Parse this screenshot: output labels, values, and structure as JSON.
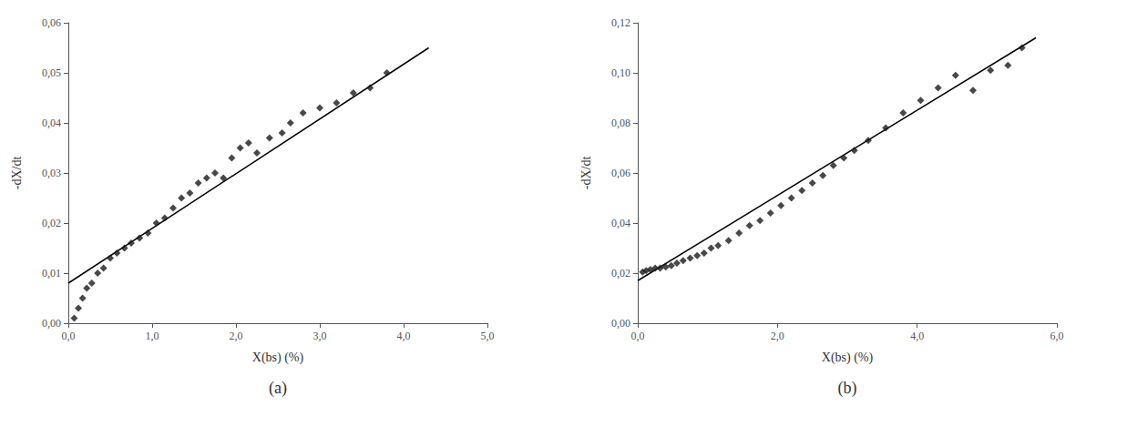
{
  "chart_data": [
    {
      "type": "scatter",
      "xlabel": "X(bs) (%)",
      "ylabel": "-dX/dt",
      "annotations": [
        "(a)"
      ],
      "grid": false,
      "series": [
        {
          "type": "scatter",
          "color": "#1a1a1a",
          "marker": "diamond",
          "x": [
            0.07,
            0.12,
            0.17,
            0.22,
            0.28,
            0.35,
            0.42,
            0.5,
            0.58,
            0.67,
            0.75,
            0.85,
            0.95,
            1.05,
            1.15,
            1.25,
            1.35,
            1.45,
            1.55,
            1.65,
            1.75,
            1.85,
            1.95,
            2.05,
            2.15,
            2.25,
            2.4,
            2.55,
            2.65,
            2.8,
            3.0,
            3.2,
            3.4,
            3.6,
            3.8
          ],
          "values": [
            0.001,
            0.003,
            0.005,
            0.007,
            0.008,
            0.01,
            0.011,
            0.013,
            0.014,
            0.015,
            0.016,
            0.017,
            0.018,
            0.02,
            0.021,
            0.023,
            0.025,
            0.026,
            0.028,
            0.029,
            0.03,
            0.029,
            0.033,
            0.035,
            0.036,
            0.034,
            0.037,
            0.038,
            0.04,
            0.042,
            0.043,
            0.044,
            0.046,
            0.047,
            0.05
          ]
        },
        {
          "type": "line",
          "color": "#000000",
          "x": [
            0.0,
            4.3
          ],
          "values": [
            0.008,
            0.055
          ]
        }
      ],
      "xlim": [
        0.0,
        5.0
      ],
      "xticks": [
        {
          "value": 0.0,
          "label": "0,0"
        },
        {
          "value": 1.0,
          "label": "1,0"
        },
        {
          "value": 2.0,
          "label": "2,0"
        },
        {
          "value": 3.0,
          "label": "3,0"
        },
        {
          "value": 4.0,
          "label": "4,0"
        },
        {
          "value": 5.0,
          "label": "5,0"
        }
      ],
      "ylim": [
        0.0,
        0.06
      ],
      "yticks": [
        {
          "value": 0.0,
          "label": "0,00"
        },
        {
          "value": 0.01,
          "label": "0,01"
        },
        {
          "value": 0.02,
          "label": "0,02"
        },
        {
          "value": 0.03,
          "label": "0,03"
        },
        {
          "value": 0.04,
          "label": "0,04"
        },
        {
          "value": 0.05,
          "label": "0,05"
        },
        {
          "value": 0.06,
          "label": "0,06"
        }
      ]
    },
    {
      "type": "scatter",
      "xlabel": "X(bs) (%)",
      "ylabel": "-dX/dt",
      "annotations": [
        "(b)"
      ],
      "grid": false,
      "series": [
        {
          "type": "scatter",
          "color": "#1a1a1a",
          "marker": "diamond",
          "x": [
            0.07,
            0.12,
            0.18,
            0.25,
            0.32,
            0.4,
            0.48,
            0.56,
            0.65,
            0.75,
            0.85,
            0.95,
            1.05,
            1.15,
            1.3,
            1.45,
            1.6,
            1.75,
            1.9,
            2.05,
            2.2,
            2.35,
            2.5,
            2.65,
            2.8,
            2.95,
            3.1,
            3.3,
            3.55,
            3.8,
            4.05,
            4.3,
            4.55,
            4.8,
            5.05,
            5.3,
            5.5
          ],
          "values": [
            0.0205,
            0.021,
            0.0215,
            0.022,
            0.022,
            0.0225,
            0.023,
            0.024,
            0.025,
            0.026,
            0.027,
            0.028,
            0.03,
            0.031,
            0.033,
            0.036,
            0.039,
            0.041,
            0.044,
            0.047,
            0.05,
            0.053,
            0.056,
            0.059,
            0.063,
            0.066,
            0.069,
            0.073,
            0.078,
            0.084,
            0.089,
            0.094,
            0.099,
            0.093,
            0.101,
            0.103,
            0.11
          ]
        },
        {
          "type": "line",
          "color": "#000000",
          "x": [
            0.0,
            5.7
          ],
          "values": [
            0.017,
            0.114
          ]
        }
      ],
      "xlim": [
        0.0,
        6.0
      ],
      "xticks": [
        {
          "value": 0.0,
          "label": "0,0"
        },
        {
          "value": 2.0,
          "label": "2,0"
        },
        {
          "value": 4.0,
          "label": "4,0"
        },
        {
          "value": 6.0,
          "label": "6,0"
        }
      ],
      "ylim": [
        0.0,
        0.12
      ],
      "yticks": [
        {
          "value": 0.0,
          "label": "0,00"
        },
        {
          "value": 0.02,
          "label": "0,02"
        },
        {
          "value": 0.04,
          "label": "0,04"
        },
        {
          "value": 0.06,
          "label": "0,06"
        },
        {
          "value": 0.08,
          "label": "0,08"
        },
        {
          "value": 0.1,
          "label": "0,10"
        },
        {
          "value": 0.12,
          "label": "0,12"
        }
      ]
    }
  ]
}
